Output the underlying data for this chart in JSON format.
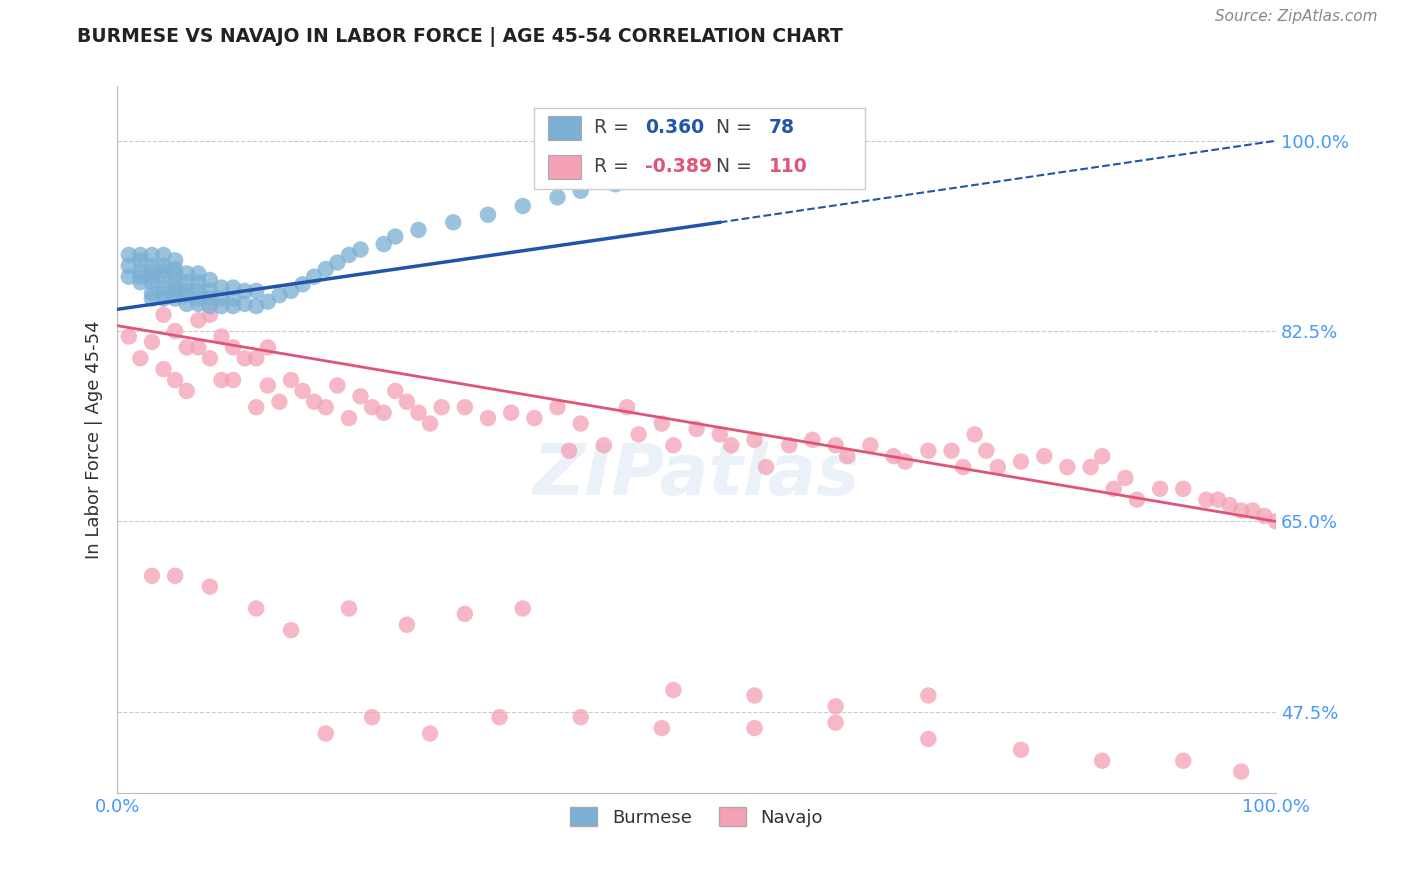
{
  "title": "BURMESE VS NAVAJO IN LABOR FORCE | AGE 45-54 CORRELATION CHART",
  "source_text": "Source: ZipAtlas.com",
  "ylabel": "In Labor Force | Age 45-54",
  "xlim": [
    0.0,
    1.0
  ],
  "ylim": [
    0.4,
    1.05
  ],
  "yticks": [
    0.475,
    0.65,
    0.825,
    1.0
  ],
  "ytick_labels": [
    "47.5%",
    "65.0%",
    "82.5%",
    "100.0%"
  ],
  "xtick_labels": [
    "0.0%",
    "100.0%"
  ],
  "xticks": [
    0.0,
    1.0
  ],
  "burmese_R": 0.36,
  "burmese_N": 78,
  "navajo_R": -0.389,
  "navajo_N": 110,
  "burmese_color": "#7bafd4",
  "navajo_color": "#f4a0b5",
  "burmese_line_color": "#2255aa",
  "navajo_line_color": "#e05577",
  "watermark_text": "ZIPatlas",
  "legend_label_burmese": "Burmese",
  "legend_label_navajo": "Navajo",
  "burmese_trend_start_x": 0.0,
  "burmese_trend_start_y": 0.845,
  "burmese_trend_solid_end_x": 0.52,
  "burmese_trend_solid_end_y": 0.925,
  "burmese_trend_dashed_end_x": 1.0,
  "burmese_trend_dashed_end_y": 1.0,
  "navajo_trend_start_x": 0.0,
  "navajo_trend_start_y": 0.83,
  "navajo_trend_end_x": 1.0,
  "navajo_trend_end_y": 0.65,
  "burmese_x": [
    0.01,
    0.01,
    0.01,
    0.02,
    0.02,
    0.02,
    0.02,
    0.02,
    0.03,
    0.03,
    0.03,
    0.03,
    0.03,
    0.03,
    0.03,
    0.04,
    0.04,
    0.04,
    0.04,
    0.04,
    0.04,
    0.04,
    0.05,
    0.05,
    0.05,
    0.05,
    0.05,
    0.05,
    0.05,
    0.06,
    0.06,
    0.06,
    0.06,
    0.06,
    0.07,
    0.07,
    0.07,
    0.07,
    0.07,
    0.08,
    0.08,
    0.08,
    0.08,
    0.09,
    0.09,
    0.09,
    0.1,
    0.1,
    0.1,
    0.11,
    0.11,
    0.12,
    0.12,
    0.13,
    0.14,
    0.15,
    0.16,
    0.17,
    0.18,
    0.19,
    0.2,
    0.21,
    0.23,
    0.24,
    0.26,
    0.29,
    0.32,
    0.35,
    0.38,
    0.4,
    0.43,
    0.46,
    0.48,
    0.5,
    0.52,
    0.54,
    0.57,
    0.6
  ],
  "burmese_y": [
    0.875,
    0.885,
    0.895,
    0.87,
    0.875,
    0.88,
    0.89,
    0.895,
    0.855,
    0.86,
    0.87,
    0.875,
    0.88,
    0.885,
    0.895,
    0.855,
    0.86,
    0.865,
    0.875,
    0.88,
    0.885,
    0.895,
    0.855,
    0.86,
    0.865,
    0.87,
    0.878,
    0.882,
    0.89,
    0.85,
    0.858,
    0.862,
    0.87,
    0.878,
    0.85,
    0.855,
    0.862,
    0.87,
    0.878,
    0.848,
    0.855,
    0.862,
    0.872,
    0.848,
    0.855,
    0.865,
    0.848,
    0.855,
    0.865,
    0.85,
    0.862,
    0.848,
    0.862,
    0.852,
    0.858,
    0.862,
    0.868,
    0.875,
    0.882,
    0.888,
    0.895,
    0.9,
    0.905,
    0.912,
    0.918,
    0.925,
    0.932,
    0.94,
    0.948,
    0.954,
    0.96,
    0.966,
    0.97,
    0.975,
    0.98,
    0.985,
    0.99,
    0.995
  ],
  "navajo_x": [
    0.01,
    0.02,
    0.03,
    0.04,
    0.04,
    0.05,
    0.05,
    0.06,
    0.06,
    0.07,
    0.07,
    0.08,
    0.08,
    0.09,
    0.09,
    0.1,
    0.1,
    0.11,
    0.12,
    0.12,
    0.13,
    0.13,
    0.14,
    0.15,
    0.16,
    0.17,
    0.18,
    0.19,
    0.2,
    0.21,
    0.22,
    0.23,
    0.24,
    0.25,
    0.26,
    0.27,
    0.28,
    0.3,
    0.32,
    0.34,
    0.36,
    0.38,
    0.39,
    0.4,
    0.42,
    0.44,
    0.45,
    0.47,
    0.48,
    0.5,
    0.52,
    0.53,
    0.55,
    0.56,
    0.58,
    0.6,
    0.62,
    0.63,
    0.65,
    0.67,
    0.68,
    0.7,
    0.72,
    0.73,
    0.74,
    0.75,
    0.76,
    0.78,
    0.8,
    0.82,
    0.84,
    0.85,
    0.86,
    0.87,
    0.88,
    0.9,
    0.92,
    0.94,
    0.95,
    0.96,
    0.97,
    0.98,
    0.99,
    1.0,
    0.03,
    0.05,
    0.08,
    0.12,
    0.15,
    0.2,
    0.25,
    0.3,
    0.35,
    0.18,
    0.22,
    0.27,
    0.33,
    0.4,
    0.47,
    0.55,
    0.62,
    0.7,
    0.78,
    0.85,
    0.92,
    0.97,
    0.48,
    0.55,
    0.62,
    0.7
  ],
  "navajo_y": [
    0.82,
    0.8,
    0.815,
    0.79,
    0.84,
    0.78,
    0.825,
    0.77,
    0.81,
    0.81,
    0.835,
    0.8,
    0.84,
    0.78,
    0.82,
    0.78,
    0.81,
    0.8,
    0.755,
    0.8,
    0.775,
    0.81,
    0.76,
    0.78,
    0.77,
    0.76,
    0.755,
    0.775,
    0.745,
    0.765,
    0.755,
    0.75,
    0.77,
    0.76,
    0.75,
    0.74,
    0.755,
    0.755,
    0.745,
    0.75,
    0.745,
    0.755,
    0.715,
    0.74,
    0.72,
    0.755,
    0.73,
    0.74,
    0.72,
    0.735,
    0.73,
    0.72,
    0.725,
    0.7,
    0.72,
    0.725,
    0.72,
    0.71,
    0.72,
    0.71,
    0.705,
    0.715,
    0.715,
    0.7,
    0.73,
    0.715,
    0.7,
    0.705,
    0.71,
    0.7,
    0.7,
    0.71,
    0.68,
    0.69,
    0.67,
    0.68,
    0.68,
    0.67,
    0.67,
    0.665,
    0.66,
    0.66,
    0.655,
    0.65,
    0.6,
    0.6,
    0.59,
    0.57,
    0.55,
    0.57,
    0.555,
    0.565,
    0.57,
    0.455,
    0.47,
    0.455,
    0.47,
    0.47,
    0.46,
    0.46,
    0.465,
    0.45,
    0.44,
    0.43,
    0.43,
    0.42,
    0.495,
    0.49,
    0.48,
    0.49
  ]
}
